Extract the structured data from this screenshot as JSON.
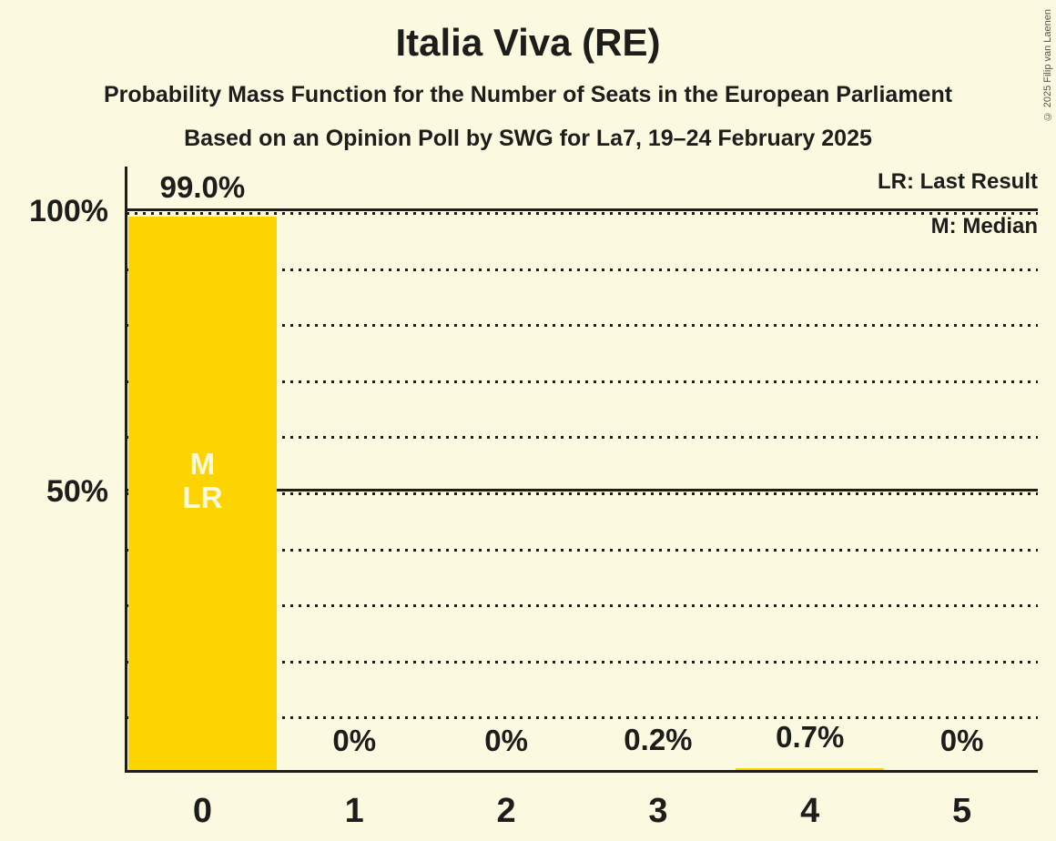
{
  "title": "Italia Viva (RE)",
  "subtitle": "Probability Mass Function for the Number of Seats in the European Parliament",
  "poll_line": "Based on an Opinion Poll by SWG for La7, 19–24 February 2025",
  "copyright": "© 2025 Filip van Laenen",
  "legend": {
    "lr_label": "LR: Last Result",
    "m_label": "M: Median"
  },
  "colors": {
    "background": "#FCF9E1",
    "bar": "#FDD400",
    "text": "#1D1D1B",
    "bar_text": "#FCF9E1",
    "copyright_text": "#55544E"
  },
  "chart_data": {
    "type": "bar",
    "title": "Italia Viva (RE)",
    "categories": [
      "0",
      "1",
      "2",
      "3",
      "4",
      "5"
    ],
    "values": [
      99.0,
      0,
      0,
      0.2,
      0.7,
      0
    ],
    "bar_labels": [
      "99.0%",
      "0%",
      "0%",
      "0.2%",
      "0.7%",
      "0%"
    ],
    "xlabel": "",
    "ylabel": "",
    "ylim": [
      0,
      100
    ],
    "yticks": [
      {
        "label": "100%",
        "value": 100
      },
      {
        "label": "50%",
        "value": 50
      }
    ],
    "gridlines": {
      "dotted_every_pct": 10,
      "solid_at_pct": [
        50,
        100
      ]
    },
    "legend_position": "top-right",
    "markers": [
      {
        "category_index": 0,
        "lines": [
          "M",
          "LR"
        ],
        "meaning": [
          "Median",
          "Last Result"
        ]
      }
    ]
  }
}
